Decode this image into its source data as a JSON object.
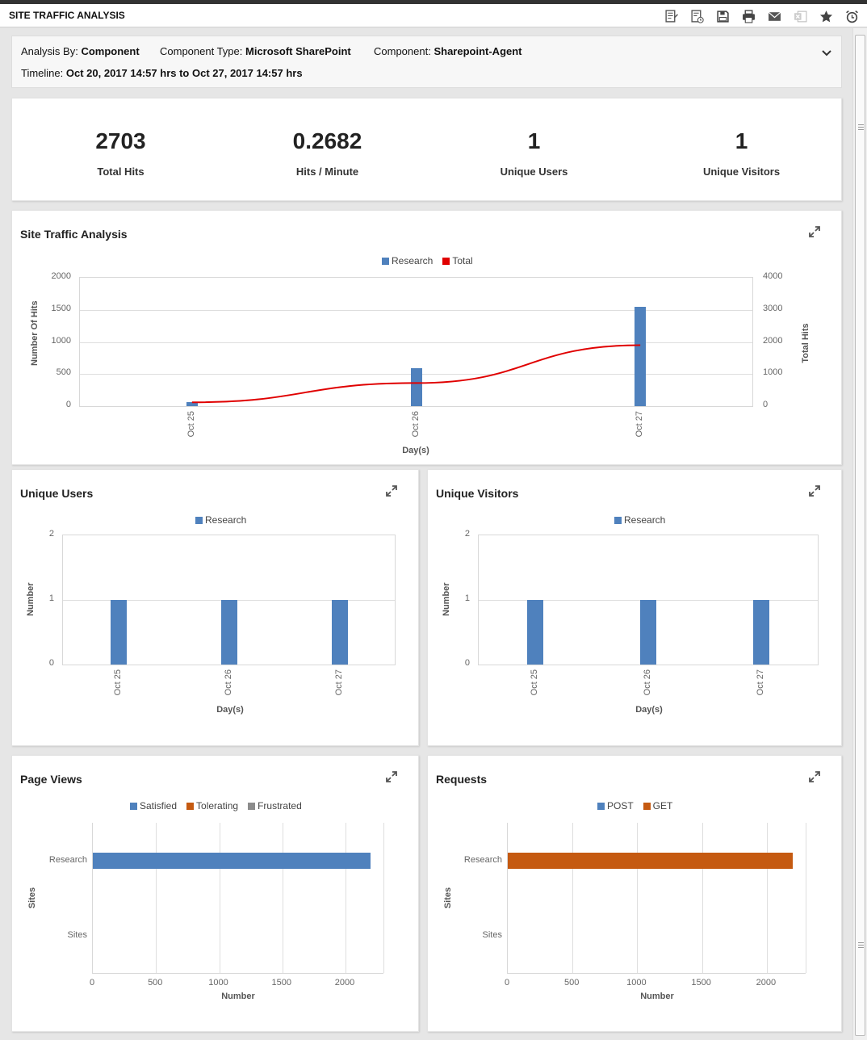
{
  "header": {
    "title": "SITE TRAFFIC ANALYSIS",
    "tools": [
      "report-edit-icon",
      "report-schedule-icon",
      "save-icon",
      "print-icon",
      "email-icon",
      "export-excel-icon",
      "favorite-star-icon",
      "alarm-clock-icon"
    ]
  },
  "filters": {
    "analysis_by_label": "Analysis By:",
    "analysis_by_value": "Component",
    "component_type_label": "Component Type:",
    "component_type_value": "Microsoft SharePoint",
    "component_label": "Component:",
    "component_value": "Sharepoint-Agent",
    "timeline_label": "Timeline:",
    "timeline_value": "Oct 20, 2017 14:57 hrs to Oct 27, 2017 14:57 hrs"
  },
  "stats": [
    {
      "value": "2703",
      "label": "Total Hits"
    },
    {
      "value": "0.2682",
      "label": "Hits / Minute"
    },
    {
      "value": "1",
      "label": "Unique Users"
    },
    {
      "value": "1",
      "label": "Unique Visitors"
    }
  ],
  "colors": {
    "blue": "#4f81bd",
    "red": "#e00000",
    "orange": "#c55a11",
    "gray": "#8c8c8c"
  },
  "chart_data": [
    {
      "id": "site_traffic",
      "type": "bar",
      "title": "Site Traffic Analysis",
      "categories": [
        "Oct 25",
        "Oct 26",
        "Oct 27"
      ],
      "legend": [
        "Research",
        "Total"
      ],
      "xlabel": "Day(s)",
      "ylabel": "Number Of Hits",
      "y2label": "Total Hits",
      "ylim": [
        0,
        2000
      ],
      "y2lim": [
        0,
        4000
      ],
      "yticks": [
        "2000",
        "1500",
        "1000",
        "500",
        "0"
      ],
      "y2ticks": [
        "4000",
        "3000",
        "2000",
        "1000",
        "0"
      ],
      "series": [
        {
          "name": "Research",
          "type": "bar",
          "axis": "left",
          "values": [
            60,
            590,
            1550
          ]
        },
        {
          "name": "Total",
          "type": "line",
          "axis": "right",
          "values": [
            120,
            720,
            1900
          ]
        }
      ]
    },
    {
      "id": "unique_users",
      "type": "bar",
      "title": "Unique Users",
      "categories": [
        "Oct 25",
        "Oct 26",
        "Oct 27"
      ],
      "legend": [
        "Research"
      ],
      "xlabel": "Day(s)",
      "ylabel": "Number",
      "ylim": [
        0,
        2
      ],
      "yticks": [
        "2",
        "1",
        "0"
      ],
      "series": [
        {
          "name": "Research",
          "values": [
            1,
            1,
            1
          ]
        }
      ]
    },
    {
      "id": "unique_visitors",
      "type": "bar",
      "title": "Unique Visitors",
      "categories": [
        "Oct 25",
        "Oct 26",
        "Oct 27"
      ],
      "legend": [
        "Research"
      ],
      "xlabel": "Day(s)",
      "ylabel": "Number",
      "ylim": [
        0,
        2
      ],
      "yticks": [
        "2",
        "1",
        "0"
      ],
      "series": [
        {
          "name": "Research",
          "values": [
            1,
            1,
            1
          ]
        }
      ]
    },
    {
      "id": "page_views",
      "type": "bar",
      "orientation": "horizontal",
      "title": "Page Views",
      "categories": [
        "Research",
        "Sites"
      ],
      "legend": [
        "Satisfied",
        "Tolerating",
        "Frustrated"
      ],
      "xlabel": "Number",
      "ylabel": "Sites",
      "xlim": [
        0,
        2300
      ],
      "xticks": [
        "0",
        "500",
        "1000",
        "1500",
        "2000"
      ],
      "series": [
        {
          "name": "Satisfied",
          "values": [
            2200,
            0
          ]
        },
        {
          "name": "Tolerating",
          "values": [
            0,
            0
          ]
        },
        {
          "name": "Frustrated",
          "values": [
            0,
            0
          ]
        }
      ]
    },
    {
      "id": "requests",
      "type": "bar",
      "orientation": "horizontal",
      "title": "Requests",
      "categories": [
        "Research",
        "Sites"
      ],
      "legend": [
        "POST",
        "GET"
      ],
      "xlabel": "Number",
      "ylabel": "Sites",
      "xlim": [
        0,
        2300
      ],
      "xticks": [
        "0",
        "500",
        "1000",
        "1500",
        "2000"
      ],
      "series": [
        {
          "name": "POST",
          "values": [
            0,
            0
          ]
        },
        {
          "name": "GET",
          "values": [
            2200,
            0
          ]
        }
      ]
    }
  ]
}
